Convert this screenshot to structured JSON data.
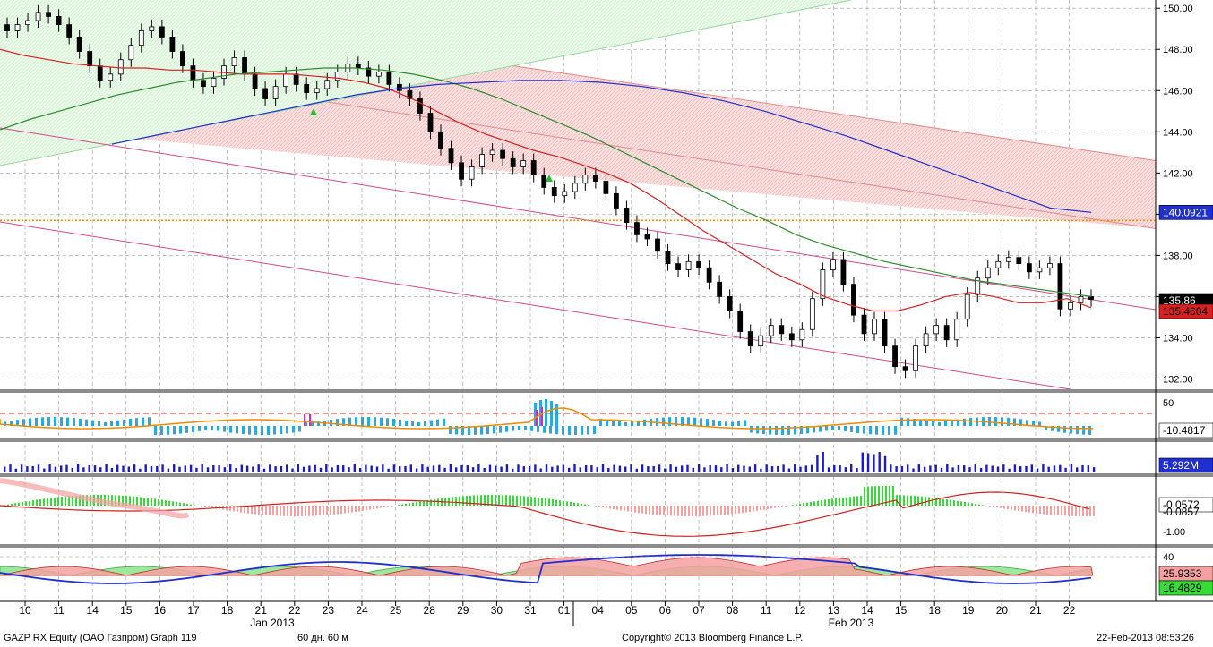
{
  "footer": {
    "ticker": "GAZP RX Equity (ОАО Газпром) Graph 119",
    "period": "60 дн. 60 м",
    "copyright": "Copyright© 2013 Bloomberg Finance L.P.",
    "timestamp": "22-Feb-2013 08:53:26"
  },
  "chart_data": [
    {
      "type": "candlestick",
      "panel": "price",
      "x_tick_labels": [
        "10",
        "11",
        "14",
        "15",
        "16",
        "17",
        "18",
        "21",
        "22",
        "23",
        "24",
        "25",
        "28",
        "29",
        "30",
        "31",
        "01",
        "04",
        "05",
        "06",
        "07",
        "08",
        "11",
        "12",
        "13",
        "14",
        "15",
        "18",
        "19",
        "20",
        "21",
        "22"
      ],
      "month_labels": [
        "Jan 2013",
        "Feb 2013"
      ],
      "y_tick_labels": [
        "150.00",
        "148.00",
        "146.00",
        "144.00",
        "142.00",
        "140.00",
        "138.00",
        "136.00",
        "134.00",
        "132.00"
      ],
      "ylim": [
        131.5,
        150.4
      ],
      "price_labels": {
        "last": "135.86",
        "ma_short": "135.4604",
        "ma_long": "140.0921"
      },
      "close": [
        148.9,
        149.2,
        149.4,
        149.8,
        149.6,
        149.2,
        148.6,
        147.9,
        147.2,
        146.5,
        146.8,
        147.5,
        148.2,
        148.9,
        149.1,
        148.6,
        147.9,
        147.2,
        146.5,
        146.2,
        146.6,
        147.2,
        147.6,
        146.8,
        146.1,
        145.6,
        146.2,
        146.8,
        146.3,
        145.9,
        146.1,
        146.5,
        146.9,
        147.3,
        147.1,
        146.7,
        146.9,
        146.3,
        146.0,
        145.6,
        144.9,
        144.0,
        143.2,
        142.5,
        141.7,
        142.3,
        142.9,
        143.1,
        142.7,
        142.3,
        142.6,
        141.9,
        141.3,
        140.9,
        141.1,
        141.5,
        141.9,
        141.6,
        141.0,
        140.3,
        139.6,
        139.0,
        138.8,
        138.2,
        137.6,
        137.3,
        137.7,
        137.4,
        136.7,
        136.0,
        135.3,
        134.3,
        133.6,
        134.1,
        134.6,
        134.2,
        133.9,
        134.4,
        135.9,
        137.3,
        137.8,
        136.6,
        135.1,
        134.2,
        134.9,
        133.6,
        132.6,
        132.4,
        133.6,
        134.2,
        134.6,
        133.9,
        134.9,
        136.1,
        136.9,
        137.4,
        137.7,
        137.9,
        137.6,
        137.2,
        137.4,
        137.6,
        135.4,
        135.7,
        136.0,
        135.86
      ],
      "ma_short": [
        148.0,
        147.7,
        147.5,
        147.3,
        147.2,
        147.1,
        147.1,
        147.0,
        147.0,
        146.9,
        146.8,
        146.8,
        146.8,
        146.7,
        146.6,
        146.4,
        146.1,
        145.6,
        145.0,
        144.4,
        143.9,
        143.5,
        143.1,
        142.8,
        142.4,
        142.0,
        141.5,
        140.8,
        140.0,
        139.2,
        138.5,
        137.8,
        137.1,
        136.6,
        136.0,
        135.6,
        135.3,
        135.3,
        135.6,
        136.0,
        136.2,
        136.0,
        135.7,
        135.7,
        135.9,
        135.46
      ],
      "ma_long": [
        144.1,
        144.6,
        145.0,
        145.4,
        145.8,
        146.1,
        146.4,
        146.6,
        146.8,
        146.9,
        147.0,
        147.1,
        147.1,
        147.0,
        146.8,
        146.5,
        146.1,
        145.6,
        145.0,
        144.4,
        143.8,
        143.1,
        142.4,
        141.7,
        141.0,
        140.3,
        139.7,
        139.0,
        138.5,
        138.1,
        137.7,
        137.4,
        137.1,
        136.8,
        136.6,
        136.4,
        136.2,
        136.0
      ],
      "ma_200": [
        143.4,
        143.8,
        144.2,
        144.6,
        145.0,
        145.4,
        145.8,
        146.1,
        146.3,
        146.4,
        146.5,
        146.5,
        146.4,
        146.2,
        145.9,
        145.5,
        145.0,
        144.4,
        143.8,
        143.1,
        142.4,
        141.7,
        141.0,
        140.3,
        140.09
      ]
    },
    {
      "type": "bar",
      "panel": "oscillator",
      "y_tick_labels": [
        "50"
      ],
      "value_label": "-10.4817"
    },
    {
      "type": "bar",
      "panel": "volume",
      "value_label": "5.292M"
    },
    {
      "type": "line",
      "panel": "macd",
      "y_tick_labels": [
        "-1.00"
      ],
      "value_labels": [
        "-0.0572",
        "-0.0857"
      ]
    },
    {
      "type": "area",
      "panel": "dmi",
      "y_tick_labels": [
        "40"
      ],
      "value_labels": [
        "25.9353",
        "16.4829"
      ]
    }
  ],
  "colors": {
    "up_candle": "#000000",
    "ma_short": "#d92020",
    "ma_long": "#2e8b2e",
    "ma_200": "#1f2fd0",
    "channel_fill": "#f6cccc",
    "upper_channel": "#c8f0c8",
    "resistance": "#ff8c00",
    "hist": "#29a9e0",
    "volume": "#1a1acc",
    "macd_pos": "#33dd33",
    "macd_neg": "#f4a0a0"
  }
}
